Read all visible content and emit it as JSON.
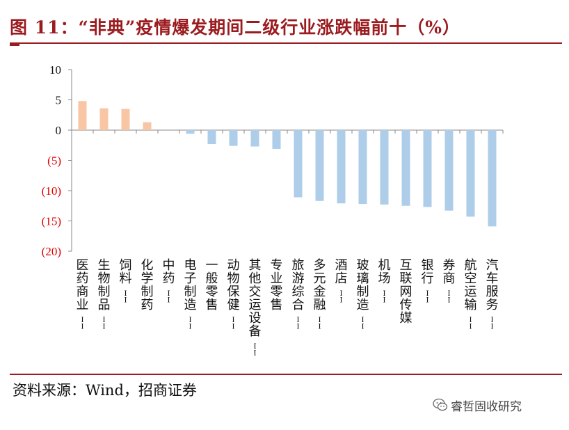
{
  "title": "图 11：“非典”疫情爆发期间二级行业涨跌幅前十（%）",
  "source": "资料来源：Wind，招商证券",
  "watermark": "睿哲固收研究",
  "colors": {
    "accent": "#9b1b1f",
    "positive": "#f8c6a4",
    "negative": "#aecde8",
    "negative_tick": "#e00000"
  },
  "chart_data": {
    "type": "bar",
    "title": "",
    "xlabel": "",
    "ylabel": "",
    "ylim": [
      -20,
      10
    ],
    "yticks": [
      10,
      5,
      0,
      -5,
      -10,
      -15,
      -20
    ],
    "ytick_labels": [
      "10",
      "5",
      "0",
      "(5)",
      "(10)",
      "(15)",
      "(20)"
    ],
    "grid": false,
    "categories": [
      "医药商业II",
      "生物制品II",
      "饲料II",
      "化学制药",
      "中药II",
      "电子制造II",
      "一般零售",
      "动物保健II",
      "其他交运设备II",
      "专业零售",
      "旅游综合II",
      "多元金融II",
      "酒店II",
      "玻璃制造II",
      "机场II",
      "互联网传媒",
      "银行II",
      "券商II",
      "航空运输II",
      "汽车服务II"
    ],
    "values": [
      4.8,
      3.6,
      3.5,
      1.3,
      0.0,
      -0.6,
      -2.3,
      -2.6,
      -2.7,
      -3.1,
      -11.1,
      -11.7,
      -12.1,
      -12.2,
      -12.3,
      -12.5,
      -12.7,
      -13.3,
      -14.3,
      -15.9
    ]
  }
}
